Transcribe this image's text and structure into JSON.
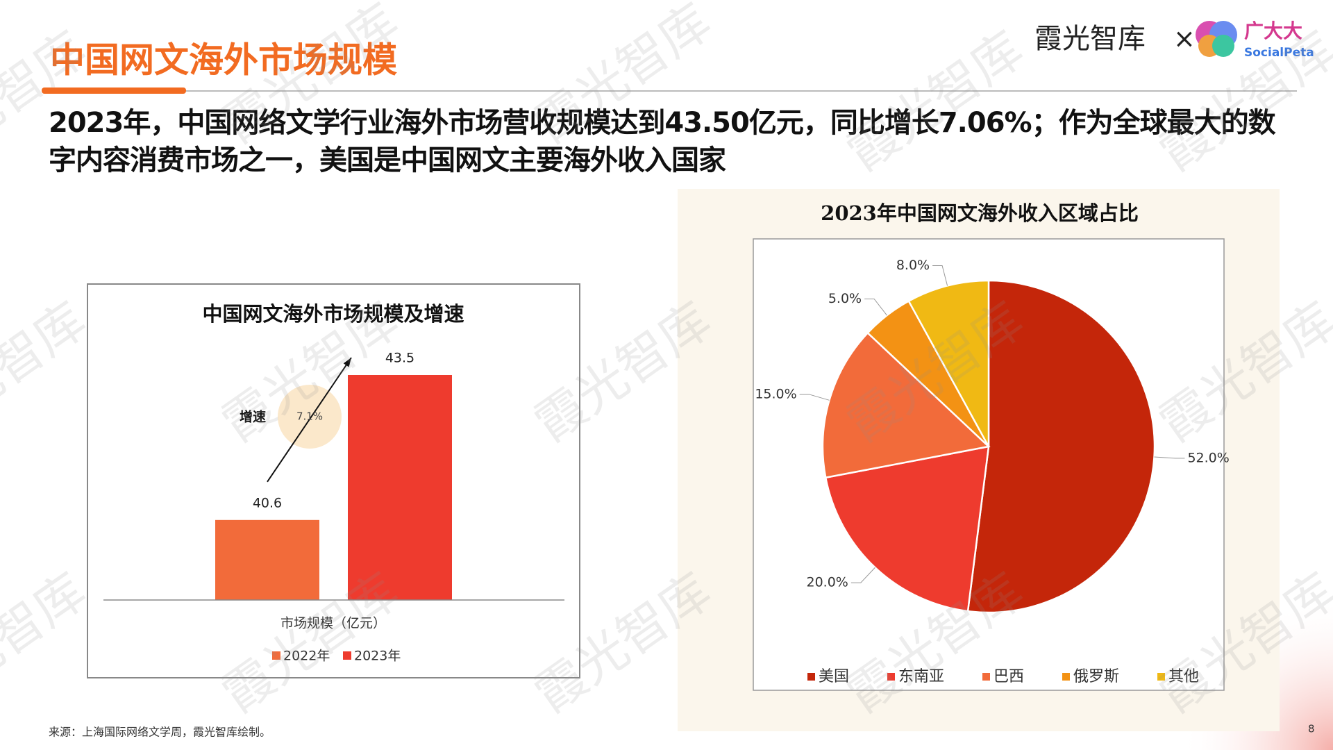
{
  "header": {
    "title": "中国网文海外市场规模",
    "brand": "霞光智库",
    "cross": "×",
    "logo_cn": "广大大",
    "logo_en": "SocialPeta"
  },
  "headline": "2023年，中国网络文学行业海外市场营收规模达到43.50亿元，同比增长7.06%；作为全球最大的数字内容消费市场之一，美国是中国网文主要海外收入国家",
  "watermark": "霞光智库",
  "chart_data": [
    {
      "type": "bar",
      "title": "中国网文海外市场规模及增速",
      "categories": [
        "市场规模（亿元）"
      ],
      "series": [
        {
          "name": "2022年",
          "color": "#f26b3a",
          "values": [
            40.6
          ]
        },
        {
          "name": "2023年",
          "color": "#ee3b2e",
          "values": [
            43.5
          ]
        }
      ],
      "ylim": [
        39,
        44
      ],
      "annotation": "增速",
      "growth": {
        "value": 7.1,
        "label": "7.1%"
      }
    },
    {
      "type": "pie",
      "title": "2023年中国网文海外收入区域占比",
      "categories": [
        "美国",
        "东南亚",
        "巴西",
        "俄罗斯",
        "其他"
      ],
      "values": [
        52,
        20,
        15,
        5,
        8
      ],
      "value_labels": [
        "52.0%",
        "20.0%",
        "15.0%",
        "5.0%",
        "8.0%"
      ],
      "colors": [
        "#c4260a",
        "#ee3b2e",
        "#f26b3a",
        "#f39214",
        "#f0b914"
      ]
    }
  ],
  "footer": {
    "source": "来源：上海国际网络文学周，霞光智库绘制。",
    "page": "8"
  }
}
